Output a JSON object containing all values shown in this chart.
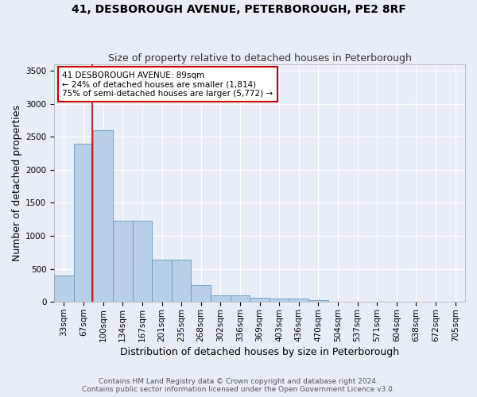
{
  "title": "41, DESBOROUGH AVENUE, PETERBOROUGH, PE2 8RF",
  "subtitle": "Size of property relative to detached houses in Peterborough",
  "xlabel": "Distribution of detached houses by size in Peterborough",
  "ylabel": "Number of detached properties",
  "footer_line1": "Contains HM Land Registry data © Crown copyright and database right 2024.",
  "footer_line2": "Contains public sector information licensed under the Open Government Licence v3.0.",
  "categories": [
    "33sqm",
    "67sqm",
    "100sqm",
    "134sqm",
    "167sqm",
    "201sqm",
    "235sqm",
    "268sqm",
    "302sqm",
    "336sqm",
    "369sqm",
    "403sqm",
    "436sqm",
    "470sqm",
    "504sqm",
    "537sqm",
    "571sqm",
    "604sqm",
    "638sqm",
    "672sqm",
    "705sqm"
  ],
  "values": [
    400,
    2400,
    2600,
    1230,
    1230,
    640,
    640,
    250,
    100,
    100,
    65,
    55,
    55,
    30,
    0,
    0,
    0,
    0,
    0,
    0,
    0
  ],
  "bar_color": "#b8cfe8",
  "bar_edge_color": "#6699bb",
  "annotation_text": "41 DESBOROUGH AVENUE: 89sqm\n← 24% of detached houses are smaller (1,814)\n75% of semi-detached houses are larger (5,772) →",
  "vline_color": "#cc0000",
  "vline_x": 1.45,
  "annotation_box_color": "#ffffff",
  "annotation_box_edge": "#cc0000",
  "background_color": "#e8eef7",
  "grid_color": "#ffffff",
  "ylim": [
    0,
    3600
  ],
  "yticks": [
    0,
    500,
    1000,
    1500,
    2000,
    2500,
    3000,
    3500
  ],
  "title_fontsize": 10,
  "subtitle_fontsize": 9,
  "axis_label_fontsize": 9,
  "tick_fontsize": 7.5,
  "annot_fontsize": 7.5,
  "footer_fontsize": 6.5
}
